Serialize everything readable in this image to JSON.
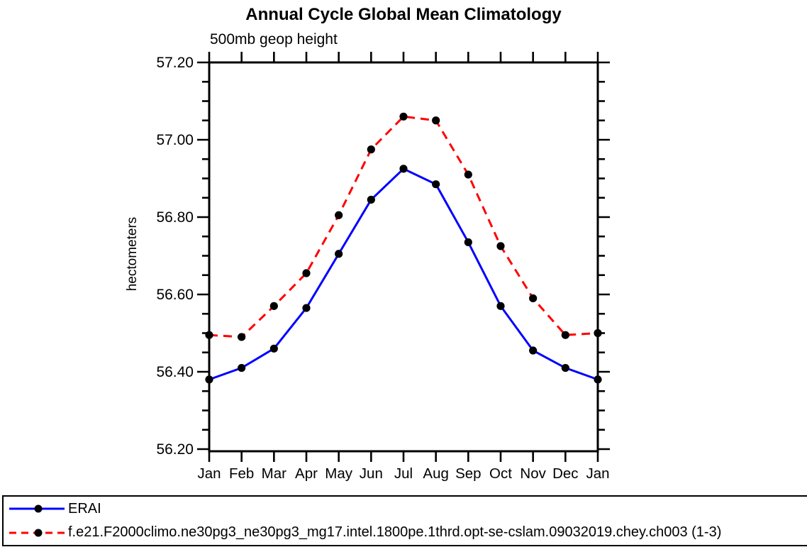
{
  "chart_data": {
    "type": "line",
    "title": "Annual Cycle Global Mean Climatology",
    "subtitle": "500mb geop height",
    "ylabel": "hectometers",
    "xlabel": "",
    "categories": [
      "Jan",
      "Feb",
      "Mar",
      "Apr",
      "May",
      "Jun",
      "Jul",
      "Aug",
      "Sep",
      "Oct",
      "Nov",
      "Dec",
      "Jan"
    ],
    "ylim": [
      56.2,
      57.2
    ],
    "yticks": [
      56.2,
      56.4,
      56.6,
      56.8,
      57.0,
      57.2
    ],
    "ytick_labels": [
      "56.20",
      "56.40",
      "56.60",
      "56.80",
      "57.00",
      "57.20"
    ],
    "ytick_step": 0.2,
    "yminor_step": 0.05,
    "grid": false,
    "legend_position": "bottom",
    "axis_color": "#000000",
    "series": [
      {
        "name": "ERAI",
        "color": "#0000ff",
        "line_style": "solid",
        "marker": "filled-circle",
        "marker_color": "#000000",
        "values": [
          56.38,
          56.41,
          56.46,
          56.565,
          56.705,
          56.845,
          56.925,
          56.885,
          56.735,
          56.57,
          56.455,
          56.41,
          56.38
        ]
      },
      {
        "name": "f.e21.F2000climo.ne30pg3_ne30pg3_mg17.intel.1800pe.1thrd.opt-se-cslam.09032019.chey.ch003 (1-3)",
        "color": "#ff0000",
        "line_style": "dashed",
        "marker": "filled-circle",
        "marker_color": "#000000",
        "values": [
          56.495,
          56.49,
          56.57,
          56.655,
          56.805,
          56.975,
          57.06,
          57.05,
          56.91,
          56.725,
          56.59,
          56.495,
          56.5
        ]
      }
    ]
  }
}
